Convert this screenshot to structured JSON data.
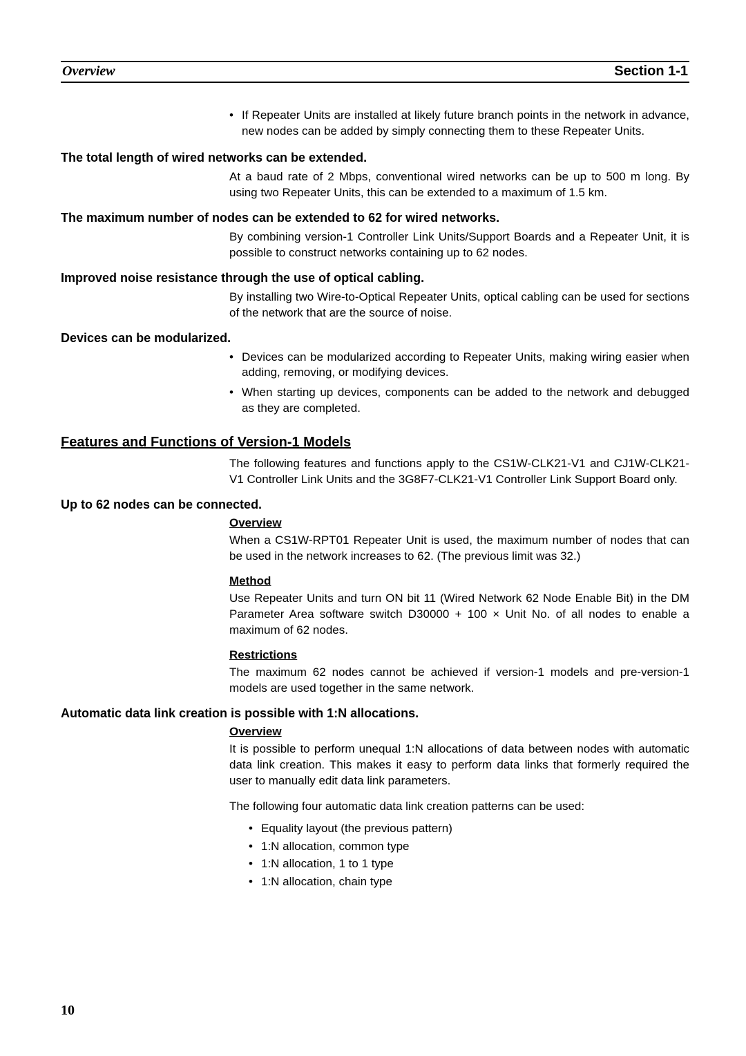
{
  "header": {
    "left": "Overview",
    "right": "Section 1-1"
  },
  "topBullet": "If Repeater Units are installed at likely future branch points in the network in advance, new nodes can be added by simply connecting them to these Repeater Units.",
  "h1": "The total length of wired networks can be extended.",
  "p1": "At a baud rate of 2 Mbps, conventional wired networks can be up to 500 m long. By using two Repeater Units, this can be extended to a maximum of 1.5 km.",
  "h2": "The maximum number of nodes can be extended to 62 for wired networks.",
  "p2": "By combining version-1 Controller Link Units/Support Boards and a Repeater Unit, it is possible to construct networks containing up to 62 nodes.",
  "h3": "Improved noise resistance through the use of optical cabling.",
  "p3": "By installing two Wire-to-Optical Repeater Units, optical cabling can be used for sections of the network that are the source of noise.",
  "h4": "Devices can be modularized.",
  "b4a": "Devices can be modularized according to Repeater Units, making wiring easier when adding, removing, or modifying devices.",
  "b4b": "When starting up devices, components can be added to the network and debugged as they are completed.",
  "featuresTitle": "Features and Functions of Version-1 Models",
  "featuresIntro": "The following features and functions apply to the CS1W-CLK21-V1 and CJ1W-CLK21-V1 Controller Link Units and the 3G8F7-CLK21-V1 Controller Link Support Board only.",
  "h5": "Up to 62 nodes can be connected.",
  "ov1_label": "Overview",
  "ov1_text": "When a CS1W-RPT01 Repeater Unit is used, the maximum number of nodes that can be used in the network increases to 62. (The previous limit was 32.)",
  "method_label": "Method",
  "method_text": "Use Repeater Units and turn ON bit 11 (Wired Network 62 Node Enable Bit) in the DM Parameter Area software switch D30000 + 100 × Unit No. of all nodes to enable a maximum of 62 nodes.",
  "restr_label": "Restrictions",
  "restr_text": "The maximum 62 nodes cannot be achieved if version-1 models and pre-version-1 models are used together in the same network.",
  "h6": "Automatic data link creation is possible with 1:N allocations.",
  "ov2_label": "Overview",
  "ov2_text": "It is possible to perform unequal 1:N allocations of data between nodes with automatic data link creation. This makes it easy to perform data links that formerly required the user to manually edit data link parameters.",
  "patternsIntro": "The following four automatic data link creation patterns can be used:",
  "patterns": {
    "a": "Equality layout (the previous pattern)",
    "b": "1:N allocation, common type",
    "c": "1:N allocation, 1 to 1 type",
    "d": "1:N allocation, chain type"
  },
  "pageNumber": "10"
}
